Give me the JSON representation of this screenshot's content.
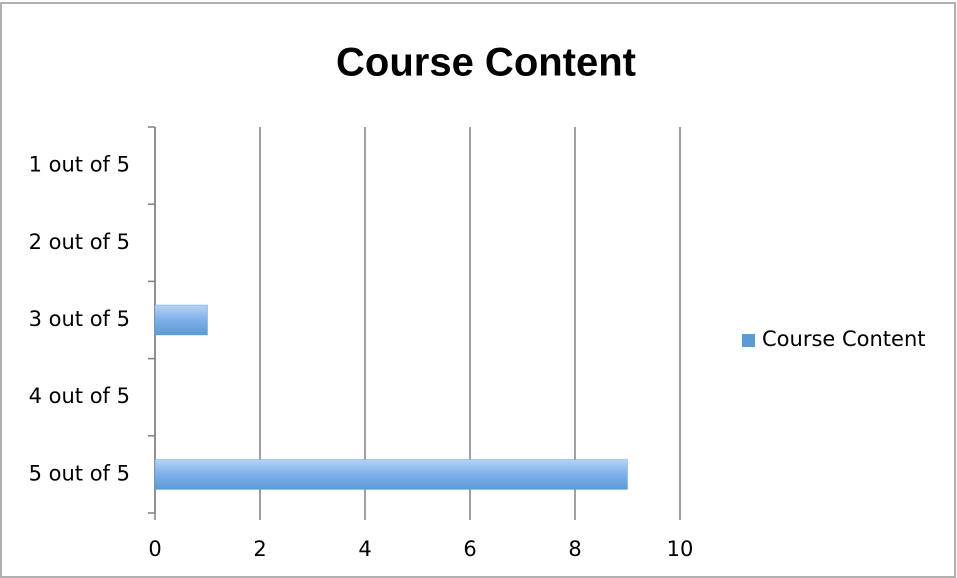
{
  "chart_data": {
    "type": "hbar",
    "title": "Course Content",
    "categories": [
      "1 out of 5",
      "2 out of 5",
      "3 out of 5",
      "4 out of 5",
      "5 out of 5"
    ],
    "series": [
      {
        "name": "Course Content",
        "color": "#5b9bd5",
        "values": [
          0,
          0,
          1,
          0,
          9
        ]
      }
    ],
    "xlim": [
      0,
      10
    ],
    "xticks": [
      0,
      2,
      4,
      6,
      8,
      10
    ],
    "grid": true,
    "legend": "right"
  }
}
